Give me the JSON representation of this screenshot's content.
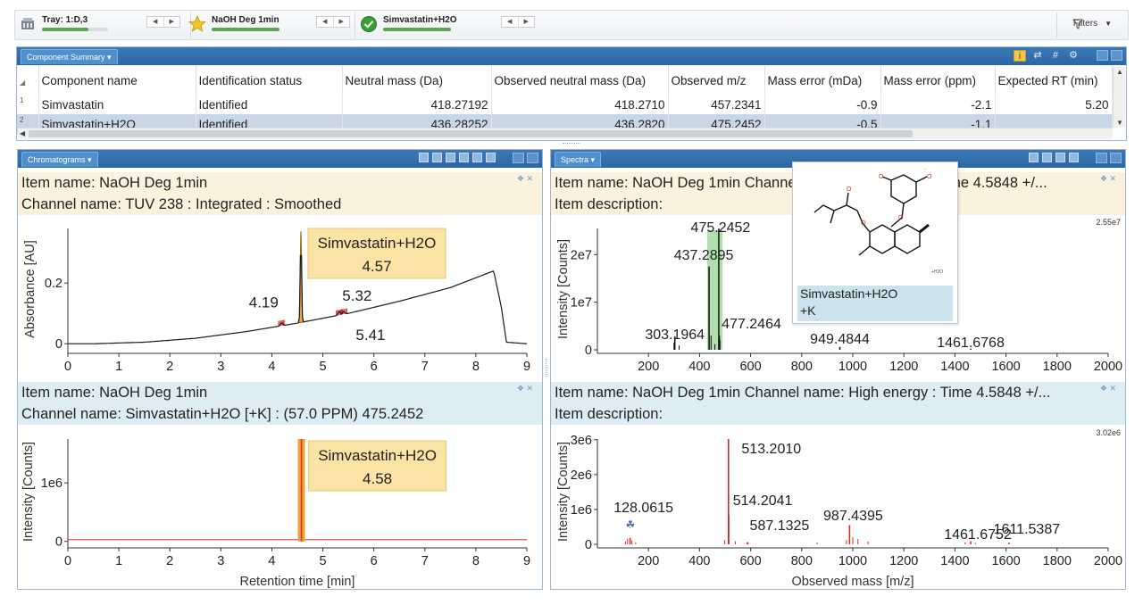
{
  "toolbar": {
    "tray": {
      "label": "Tray: 1:D,3",
      "progress": 0.7,
      "icon": "tray-icon"
    },
    "sample": {
      "label": "NaOH Deg 1min",
      "progress": 1.0,
      "icon": "star-icon"
    },
    "component": {
      "label": "Simvastatin+H2O",
      "progress": 1.0,
      "icon": "check-circle-icon"
    },
    "filters_label": "Filters"
  },
  "summary": {
    "tab_label": "Component Summary ▾",
    "columns": [
      "Component name",
      "Identification status",
      "Neutral mass (Da)",
      "Observed neutral mass (Da)",
      "Observed m/z",
      "Mass error (mDa)",
      "Mass error (ppm)",
      "Expected RT (min)"
    ],
    "rows": [
      {
        "idx": "1",
        "cells": [
          "Simvastatin",
          "Identified",
          "418.27192",
          "418.2710",
          "457.2341",
          "-0.9",
          "-2.1",
          "5.20"
        ]
      },
      {
        "idx": "2",
        "cells": [
          "Simvastatin+H2O",
          "Identified",
          "436.28252",
          "436.2820",
          "475.2452",
          "-0.5",
          "-1.1",
          ""
        ]
      }
    ],
    "selected_row": 1
  },
  "chrom_panel": {
    "tab_label": "Chromatograms ▾",
    "top": {
      "item_name": "Item name: NaOH Deg 1min",
      "channel": "Channel name: TUV 238 : Integrated : Smoothed"
    },
    "bottom": {
      "item_name": "Item name: NaOH Deg 1min",
      "channel": "Channel name: Simvastatin+H2O [+K] : (57.0 PPM) 475.2452"
    }
  },
  "spectra_panel": {
    "tab_label": "Spectra ▾",
    "top": {
      "item_name": "Item name: NaOH Deg 1min  Channel name: Low energy : Time 4.5848 +/...",
      "item_desc": "Item description:"
    },
    "bottom": {
      "item_name": "Item name: NaOH Deg 1min Channel name: High energy : Time 4.5848 +/...",
      "item_desc": "Item description:"
    },
    "structure_label_line1": "Simvastatin+H2O",
    "structure_label_line2": "+K",
    "structure_adduct": "+H2O"
  },
  "chart_data": [
    {
      "type": "line",
      "name": "TUV 238 chromatogram",
      "xlabel": "",
      "ylabel": "Absorbance [AU]",
      "xlim": [
        0,
        9
      ],
      "ylim": [
        -0.02,
        0.38
      ],
      "xticks": [
        0,
        1,
        2,
        3,
        4,
        5,
        6,
        7,
        8,
        9
      ],
      "yticks": [
        0,
        0.2
      ],
      "ytick_labels": [
        "0",
        "0.2"
      ],
      "baseline": [
        [
          0,
          0.0
        ],
        [
          0.5,
          0.0
        ],
        [
          1.5,
          0.005
        ],
        [
          2.5,
          0.018
        ],
        [
          3.5,
          0.04
        ],
        [
          4.5,
          0.068
        ],
        [
          5.5,
          0.1
        ],
        [
          6.5,
          0.14
        ],
        [
          7.5,
          0.185
        ],
        [
          8.35,
          0.24
        ],
        [
          8.5,
          0.12
        ],
        [
          8.6,
          0.005
        ],
        [
          9,
          0.0
        ]
      ],
      "peaks": [
        {
          "x": 4.19,
          "height": 0.01
        },
        {
          "x": 4.57,
          "height": 0.3,
          "annotation": "Simvastatin+H2O",
          "label": "4.57"
        },
        {
          "x": 5.32,
          "height": 0.012
        },
        {
          "x": 5.41,
          "height": 0.01
        }
      ],
      "annotations": [
        "4.19",
        "5.32",
        "5.41"
      ]
    },
    {
      "type": "line",
      "name": "Extracted ion chromatogram 475.2452",
      "xlabel": "Retention time [min]",
      "ylabel": "Intensity [Counts]",
      "xlim": [
        0,
        9
      ],
      "ylim": [
        -50000,
        1750000
      ],
      "xticks": [
        0,
        1,
        2,
        3,
        4,
        5,
        6,
        7,
        8,
        9
      ],
      "yticks": [
        0,
        1000000
      ],
      "ytick_labels": [
        "0",
        "1e6"
      ],
      "peaks": [
        {
          "x": 4.58,
          "height": 1750000,
          "annotation": "Simvastatin+H2O",
          "label": "4.58"
        }
      ]
    },
    {
      "type": "bar",
      "name": "Low energy spectrum",
      "xlabel": "",
      "ylabel": "Intensity [Counts]",
      "xlim": [
        0,
        2000
      ],
      "ylim": [
        0,
        25500000
      ],
      "xticks": [
        200,
        400,
        600,
        800,
        1000,
        1200,
        1400,
        1600,
        1800,
        2000
      ],
      "yticks": [
        0,
        10000000,
        20000000
      ],
      "ytick_labels": [
        "0",
        "1e7",
        "2e7"
      ],
      "max_label": "2.55e7",
      "peaks": [
        {
          "mz": 303.1964,
          "intensity": 2800000,
          "label": "303.1964"
        },
        {
          "mz": 437.2895,
          "intensity": 17500000,
          "label": "437.2895"
        },
        {
          "mz": 475.2452,
          "intensity": 25500000,
          "label": "475.2452"
        },
        {
          "mz": 477.2464,
          "intensity": 3000000,
          "label": "477.2464"
        },
        {
          "mz": 949.4844,
          "intensity": 600000,
          "label": "949.4844"
        },
        {
          "mz": 1461.6768,
          "intensity": 250000,
          "label": "1461.6768"
        }
      ]
    },
    {
      "type": "bar",
      "name": "High energy spectrum",
      "xlabel": "Observed mass [m/z]",
      "ylabel": "Intensity [Counts]",
      "xlim": [
        0,
        2000
      ],
      "ylim": [
        0,
        3020000
      ],
      "xticks": [
        200,
        400,
        600,
        800,
        1000,
        1200,
        1400,
        1600,
        1800,
        2000
      ],
      "yticks": [
        0,
        1000000,
        2000000,
        3000000
      ],
      "ytick_labels": [
        "0",
        "1e6",
        "2e6",
        "3e6"
      ],
      "max_label": "3.02e6",
      "peaks": [
        {
          "mz": 128.0615,
          "intensity": 180000,
          "label": "128.0615"
        },
        {
          "mz": 513.201,
          "intensity": 3020000,
          "label": "513.2010"
        },
        {
          "mz": 514.2041,
          "intensity": 850000,
          "label": "514.2041"
        },
        {
          "mz": 587.1325,
          "intensity": 60000,
          "label": "587.1325"
        },
        {
          "mz": 987.4395,
          "intensity": 550000,
          "label": "987.4395"
        },
        {
          "mz": 1461.6752,
          "intensity": 90000,
          "label": "1461.6752"
        },
        {
          "mz": 1611.5387,
          "intensity": 50000,
          "label": "1611.5387"
        }
      ]
    }
  ],
  "colors": {
    "accent": "#2c67a4",
    "peak_fill": "#f0a23c",
    "peak_red": "#d62d20",
    "annotation_bg": "#fbe3a6",
    "highlight_green": "#8fd18a"
  }
}
